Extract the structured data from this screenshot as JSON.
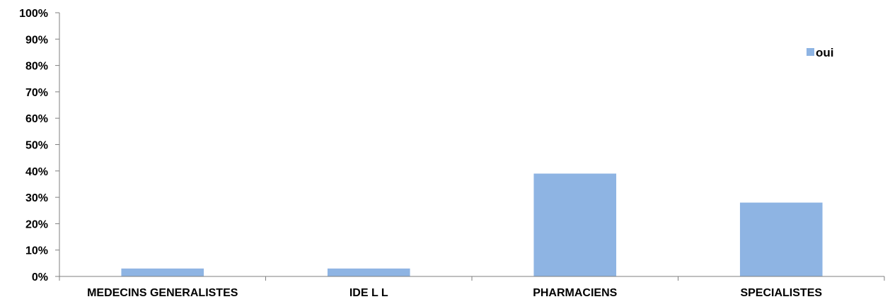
{
  "chart_data": {
    "type": "bar",
    "categories": [
      "MEDECINS GENERALISTES",
      "IDE L L",
      "PHARMACIENS",
      "SPECIALISTES"
    ],
    "series": [
      {
        "name": "oui",
        "values": [
          3,
          3,
          39,
          28
        ],
        "color": "#8eb4e3"
      }
    ],
    "yticks": [
      "0%",
      "10%",
      "20%",
      "30%",
      "40%",
      "50%",
      "60%",
      "70%",
      "80%",
      "90%",
      "100%"
    ],
    "ylim": [
      0,
      100
    ],
    "grid": false,
    "legend": {
      "position": "top-right"
    }
  }
}
